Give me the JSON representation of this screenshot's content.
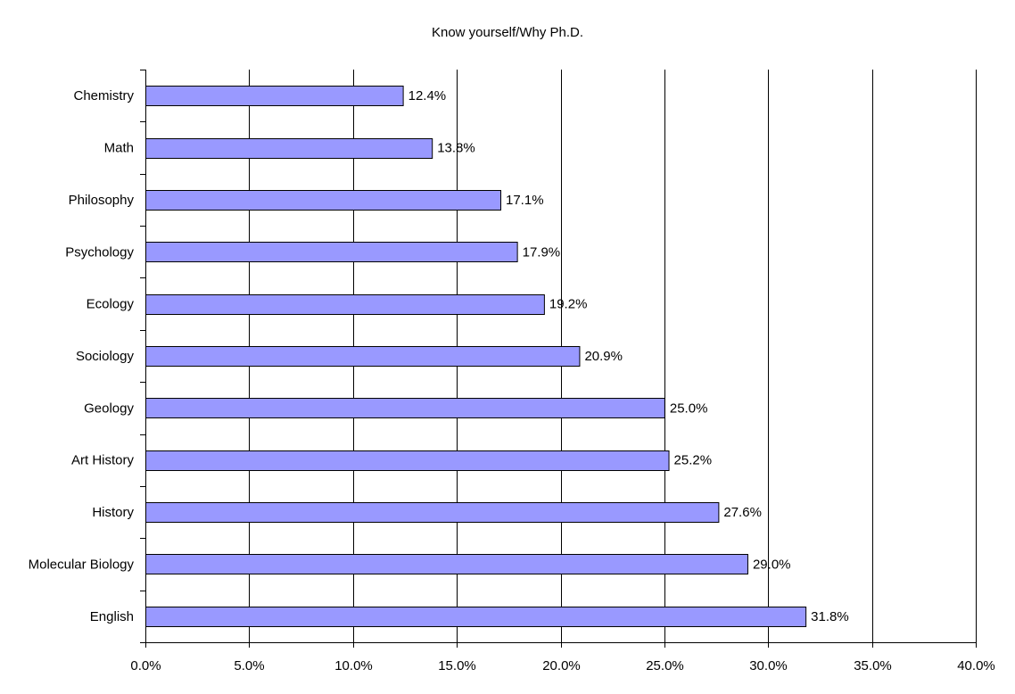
{
  "chart_data": {
    "type": "bar",
    "orientation": "horizontal",
    "title": "Know yourself/Why Ph.D.",
    "categories": [
      "Chemistry",
      "Math",
      "Philosophy",
      "Psychology",
      "Ecology",
      "Sociology",
      "Geology",
      "Art History",
      "History",
      "Molecular Biology",
      "English"
    ],
    "values": [
      12.4,
      13.8,
      17.1,
      17.9,
      19.2,
      20.9,
      25.0,
      25.2,
      27.6,
      29.0,
      31.8
    ],
    "data_labels": [
      "12.4%",
      "13.8%",
      "17.1%",
      "17.9%",
      "19.2%",
      "20.9%",
      "25.0%",
      "25.2%",
      "27.6%",
      "29.0%",
      "31.8%"
    ],
    "x_ticks": [
      "0.0%",
      "5.0%",
      "10.0%",
      "15.0%",
      "20.0%",
      "25.0%",
      "30.0%",
      "35.0%",
      "40.0%"
    ],
    "xlim": [
      0,
      40
    ],
    "xlabel": "",
    "ylabel": "",
    "grid": "vertical",
    "legend": "none",
    "bar_color": "#9999ff",
    "bar_edge_color": "#000000"
  }
}
